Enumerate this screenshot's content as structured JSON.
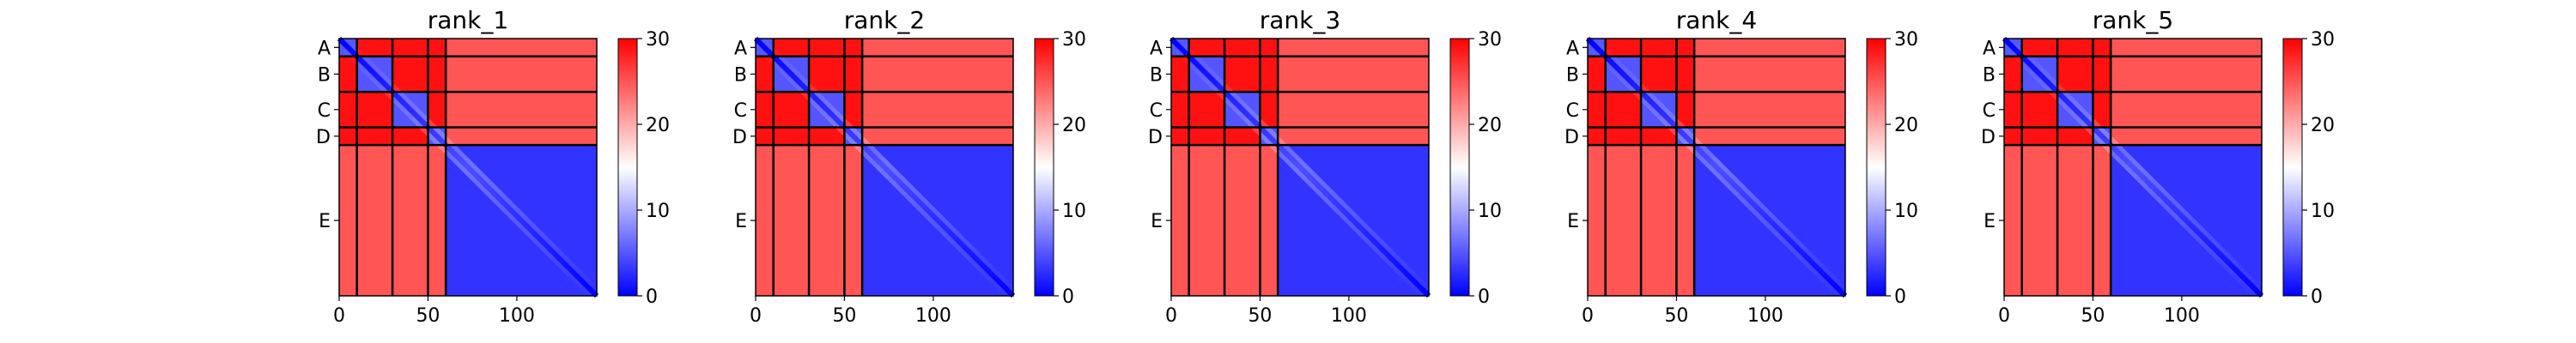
{
  "chart_data": {
    "type": "heatmap",
    "panels": [
      {
        "title": "rank_1"
      },
      {
        "title": "rank_2"
      },
      {
        "title": "rank_3"
      },
      {
        "title": "rank_4"
      },
      {
        "title": "rank_5"
      }
    ],
    "chains": [
      {
        "label": "A",
        "start": 0,
        "end": 10
      },
      {
        "label": "B",
        "start": 10,
        "end": 30
      },
      {
        "label": "C",
        "start": 30,
        "end": 50
      },
      {
        "label": "D",
        "start": 50,
        "end": 60
      },
      {
        "label": "E",
        "start": 60,
        "end": 145
      }
    ],
    "x_range": [
      0,
      145
    ],
    "x_ticks": [
      0,
      50,
      100
    ],
    "colorbar": {
      "range": [
        0,
        30
      ],
      "ticks": [
        0,
        10,
        20,
        30
      ],
      "colormap": "bwr",
      "colors": {
        "low": "#0000ff",
        "mid": "#ffffff",
        "high": "#ff0000"
      }
    },
    "cells": {
      "diagonal": 0,
      "same_chain": 5,
      "short_vs_long": 25,
      "short_vs_short": 29,
      "long_chain_internal": 3
    }
  }
}
